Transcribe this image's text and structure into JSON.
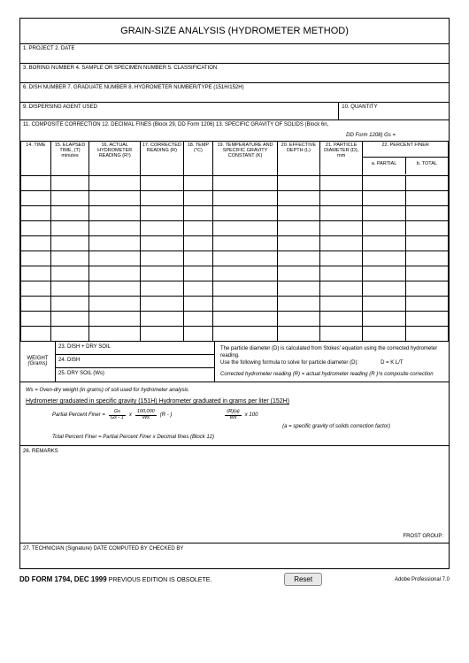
{
  "title": "GRAIN-SIZE ANALYSIS (HYDROMETER METHOD)",
  "fields": {
    "f1": "1. PROJECT 2. DATE",
    "f3": "3. BORING NUMBER 4. SAMPLE OR SPECIMEN NUMBER 5.  CLASSIFICATION",
    "f6": "6. DISH NUMBER 7. GRADUATE NUMBER 8.  HYDROMETER NUMBER/TYPE (151H/152H)",
    "f9": "9. DISPERSING AGENT USED",
    "f10": "10. QUANTITY",
    "f11": "11. COMPOSITE CORRECTION 12. DECIMAL FINES (Block 29, DD Form 1206) 13. SPECIFIC GRAVITY OF SOLIDS (Block 6n,",
    "f11b": "DD Form 1208) Gs ="
  },
  "columns": {
    "c14": "14.\nTIME",
    "c15": "15.\nELAPSED\nTIME, (T)\nminutes",
    "c16": "16.\nACTUAL\nHYDROMETER\nREADING (R¹)",
    "c17": "17.\nCORRECTED\nREADING (R)",
    "c18": "18.\nTEMP\n(°C)",
    "c19": "19.\nTEMPERATURE AND\nSPECIFIC GRAVITY\nCONSTANT (K)",
    "c20": "20.\nEFFECTIVE\nDEPTH (L)",
    "c21": "21.\nPARTICLE\nDIAMETER\n(D), mm",
    "c22": "22.\nPERCENT FINER",
    "c22a": "a. PARTIAL",
    "c22b": "b. TOTAL"
  },
  "weight": {
    "label": "WEIGHT",
    "unit": "(Grams)",
    "r23": "23. DISH +  DRY SOIL",
    "r24": "24. DISH",
    "r25": "25. DRY SOIL  (Ws)"
  },
  "wright": {
    "l1": "The particle diameter (D) is calculated from Stokes' equation using the corrected hydrometer reading.",
    "l2": "Use the following formula to solve for particle diameter (D):",
    "l2eq": "D =  K L/T",
    "l3": "Corrected hydrometer reading (R) =  actual hydrometer reading (R )¹±  composite correction"
  },
  "formulas": {
    "note": "Ws =  Oven-dry weight (in grams) of soil used for hydrometer analysis",
    "hdr": "Hydrometer graduated in specific gravity (151H) Hydrometer graduated in grams per liter (152H)",
    "eq1_label": "Partial Percent Finer =",
    "eq1_num1": "Gs",
    "eq1_den1": "Gs - 1",
    "eq1_mid": "x",
    "eq1_num2": "100,000",
    "eq1_den2": "Ws",
    "eq1_tail": "(R - )",
    "eq2_num": "(R)(a)",
    "eq2_den": "Ws",
    "eq2_tail": "x 100",
    "eq3": "(a =  specific gravity of solids correction factor)",
    "eq4": "Total Percent Finer =  Partial Percent Finer x Decimal fines (Block 12)"
  },
  "remarks": "26.  REMARKS",
  "frost": "FROST GROUP:",
  "sig": "27.  TECHNICIAN (Signature) DATE COMPUTED BY CHECKED BY",
  "footer": {
    "form": "DD FORM 1794, DEC 1999",
    "obs": "PREVIOUS EDITION IS OBSOLETE.",
    "reset": "Reset",
    "adobe": "Adobe Professional 7.0"
  },
  "data_rows": 11
}
